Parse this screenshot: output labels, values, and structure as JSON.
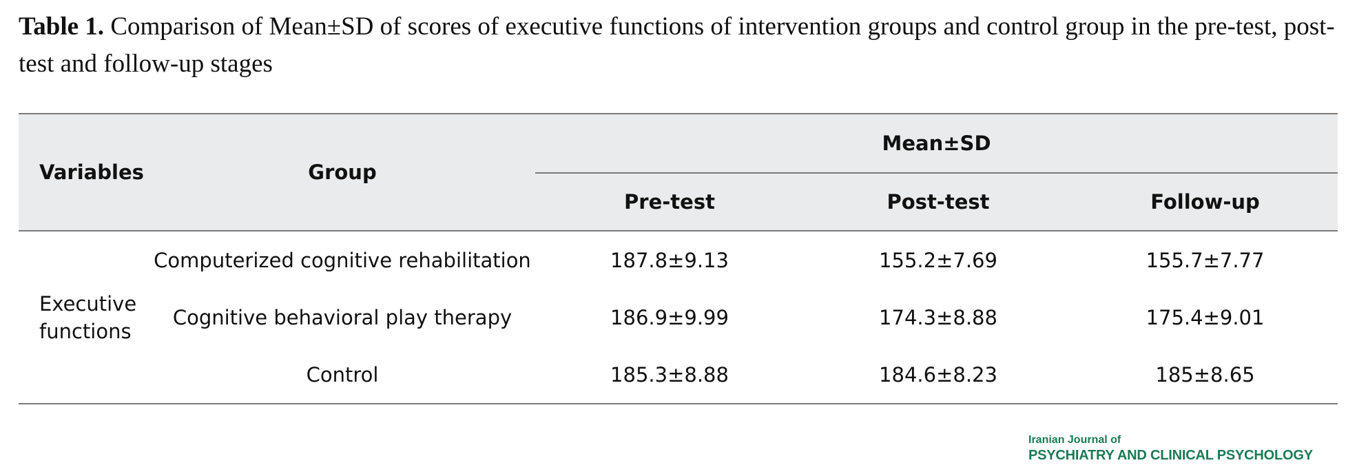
{
  "caption": {
    "lead": "Table 1.",
    "text": " Comparison of Mean±SD of scores of executive functions of intervention groups and control group in the pre-test, post-test and follow-up stages"
  },
  "table": {
    "header": {
      "variables": "Variables",
      "group": "Group",
      "meansd": "Mean±SD",
      "pretest": "Pre-test",
      "posttest": "Post-test",
      "followup": "Follow-up"
    },
    "variable_label": "Executive functions",
    "rows": [
      {
        "group": "Computerized cognitive rehabilitation",
        "pre": "187.8±9.13",
        "post": "155.2±7.69",
        "follow": "155.7±7.77"
      },
      {
        "group": "Cognitive behavioral play therapy",
        "pre": "186.9±9.99",
        "post": "174.3±8.88",
        "follow": "175.4±9.01"
      },
      {
        "group": "Control",
        "pre": "185.3±8.88",
        "post": "184.6±8.23",
        "follow": "185±8.65"
      }
    ]
  },
  "journal": {
    "line1": "Iranian Journal of",
    "line2": "PSYCHIATRY AND CLINICAL PSYCHOLOGY"
  },
  "colors": {
    "header_bg": "#eaebec",
    "rule": "#7a7a7a",
    "journal_green": "#1a7a55"
  }
}
